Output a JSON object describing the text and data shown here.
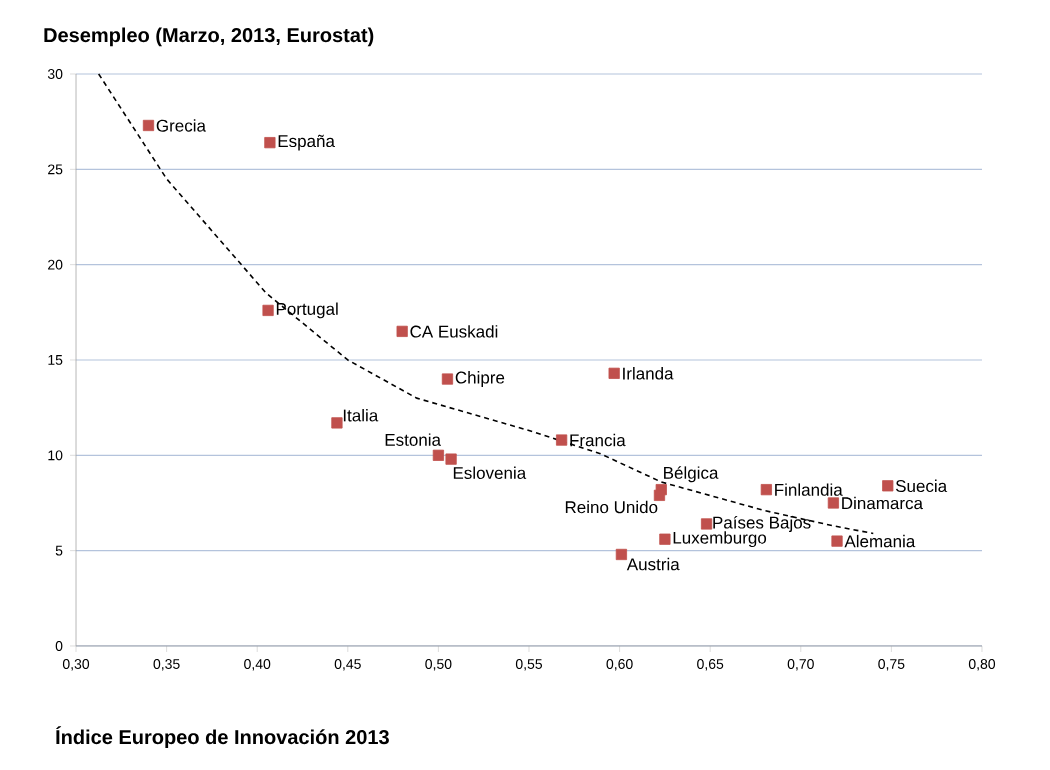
{
  "chart_data": {
    "type": "scatter",
    "title": "Desempleo (Marzo, 2013, Eurostat)",
    "xlabel": "Índice Europeo de Innovación 2013",
    "xlim": [
      0.3,
      0.8
    ],
    "ylim": [
      0,
      30
    ],
    "xticks": [
      {
        "value": 0.3,
        "label": "0,30"
      },
      {
        "value": 0.35,
        "label": "0,35"
      },
      {
        "value": 0.4,
        "label": "0,40"
      },
      {
        "value": 0.45,
        "label": "0,45"
      },
      {
        "value": 0.5,
        "label": "0,50"
      },
      {
        "value": 0.55,
        "label": "0,55"
      },
      {
        "value": 0.6,
        "label": "0,60"
      },
      {
        "value": 0.65,
        "label": "0,65"
      },
      {
        "value": 0.7,
        "label": "0,70"
      },
      {
        "value": 0.75,
        "label": "0,75"
      },
      {
        "value": 0.8,
        "label": "0,80"
      }
    ],
    "yticks": [
      0,
      5,
      10,
      15,
      20,
      25,
      30
    ],
    "grid": "y",
    "series": [
      {
        "color": "#c0504d",
        "marker": "square",
        "x": [
          0.34,
          0.407,
          0.406,
          0.48,
          0.505,
          0.597,
          0.444,
          0.5,
          0.507,
          0.568,
          0.623,
          0.622,
          0.681,
          0.748,
          0.718,
          0.648,
          0.625,
          0.72,
          0.601
        ],
        "values": [
          27.3,
          26.4,
          17.6,
          16.5,
          14.0,
          14.3,
          11.7,
          10.0,
          9.8,
          10.8,
          8.2,
          7.9,
          8.2,
          8.4,
          7.5,
          6.4,
          5.6,
          5.5,
          4.8
        ]
      },
      {
        "type": "line",
        "color": "#000000",
        "marker": "none",
        "line_style": "dashed",
        "x": [
          0.3125,
          0.35,
          0.405,
          0.45,
          0.488,
          0.55,
          0.589,
          0.623,
          0.68,
          0.718,
          0.74
        ],
        "values": [
          30,
          24.5,
          18.5,
          15.0,
          13.0,
          11.3,
          10.1,
          8.6,
          7.1,
          6.3,
          5.9
        ]
      }
    ],
    "annotations": [
      {
        "text": "Grecia",
        "x": 0.34,
        "y": 27.3
      },
      {
        "text": "España",
        "x": 0.407,
        "y": 26.4
      },
      {
        "text": "Portugal",
        "x": 0.406,
        "y": 17.6
      },
      {
        "text": "CA Euskadi",
        "x": 0.48,
        "y": 16.5
      },
      {
        "text": "Chipre",
        "x": 0.505,
        "y": 14.0
      },
      {
        "text": "Irlanda",
        "x": 0.597,
        "y": 14.3
      },
      {
        "text": "Italia",
        "x": 0.444,
        "y": 11.7
      },
      {
        "text": "Estonia",
        "x": 0.5,
        "y": 10.0
      },
      {
        "text": "Eslovenia",
        "x": 0.507,
        "y": 9.8
      },
      {
        "text": "Francia",
        "x": 0.568,
        "y": 10.8
      },
      {
        "text": "Bélgica",
        "x": 0.623,
        "y": 8.2
      },
      {
        "text": "Reino Unido",
        "x": 0.622,
        "y": 7.9
      },
      {
        "text": "Finlandia",
        "x": 0.681,
        "y": 8.2
      },
      {
        "text": "Suecia",
        "x": 0.748,
        "y": 8.4
      },
      {
        "text": "Dinamarca",
        "x": 0.718,
        "y": 7.5
      },
      {
        "text": "Países Bajos",
        "x": 0.648,
        "y": 6.4
      },
      {
        "text": "Luxemburgo",
        "x": 0.625,
        "y": 5.6
      },
      {
        "text": "Alemania",
        "x": 0.72,
        "y": 5.5
      },
      {
        "text": "Austria",
        "x": 0.601,
        "y": 4.8
      }
    ]
  }
}
